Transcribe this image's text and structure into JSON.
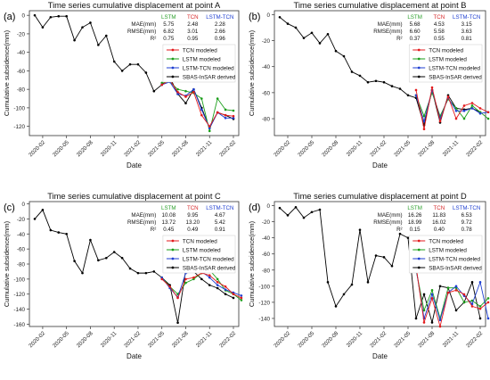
{
  "chart_data": [
    {
      "type": "line",
      "panel_label": "(a)",
      "title": "Time series cumulative displacement at point A",
      "xlabel": "Date",
      "ylabel": "Cumulative subsidence(mm)",
      "ylim": [
        -130,
        5
      ],
      "yticks": [
        -120,
        -100,
        -80,
        -60,
        -40,
        -20,
        0
      ],
      "xticks": [
        "2020-02",
        "2020-05",
        "2020-08",
        "2020-11",
        "2021-02",
        "2021-05",
        "2021-08",
        "2021-11",
        "2022-02"
      ],
      "legend_position": "center-right",
      "metrics_table": {
        "columns": [
          "LSTM",
          "TCN",
          "LSTM-TCN"
        ],
        "column_colors": [
          "#2ca02c",
          "#d62728",
          "#1f3fd1"
        ],
        "rows": [
          {
            "label": "MAE(mm)",
            "values": [
              "5.75",
              "2.48",
              "2.28"
            ]
          },
          {
            "label": "RMSE(mm)",
            "values": [
              "6.82",
              "3.01",
              "2.66"
            ]
          },
          {
            "label": "R²",
            "values": [
              "0.75",
              "0.95",
              "0.96"
            ]
          }
        ]
      },
      "series": [
        {
          "name": "TCN modeled",
          "color": "#e31a1c",
          "start_index": 16,
          "values": [
            -75,
            -70,
            -83,
            -88,
            -83,
            -108,
            -120,
            -105,
            -108,
            -109
          ]
        },
        {
          "name": "LSTM modeled",
          "color": "#1a9e1a",
          "start_index": 16,
          "values": [
            -73,
            -72,
            -80,
            -82,
            -84,
            -90,
            -125,
            -90,
            -102,
            -103
          ]
        },
        {
          "name": "LSTM-TCN modeled",
          "color": "#1f3fd1",
          "start_index": 16,
          "values": [
            -75,
            -72,
            -85,
            -87,
            -80,
            -102,
            -122,
            -105,
            -111,
            -111
          ]
        },
        {
          "name": "SBAS-InSAR derived",
          "color": "#000000",
          "start_index": 0,
          "values": [
            0,
            -13,
            -2,
            -1,
            -1,
            -27,
            -13,
            -8,
            -32,
            -22,
            -50,
            -60,
            -53,
            -53,
            -62,
            -82,
            -75,
            -67,
            -85,
            -95,
            -80,
            -100,
            -122,
            -105,
            -108,
            -112
          ]
        }
      ]
    },
    {
      "type": "line",
      "panel_label": "(b)",
      "title": "Time series cumulative displacement at point B",
      "xlabel": "Date",
      "ylabel": "Cumulative subsidence(mm)",
      "ylim": [
        -93,
        3
      ],
      "yticks": [
        -80,
        -60,
        -40,
        -20,
        0
      ],
      "xticks": [
        "2020-02",
        "2020-05",
        "2020-08",
        "2020-11",
        "2021-02",
        "2021-05",
        "2021-08",
        "2021-11",
        "2022-02"
      ],
      "legend_position": "center-right",
      "metrics_table": {
        "columns": [
          "LSTM",
          "TCN",
          "LSTM-TCN"
        ],
        "column_colors": [
          "#2ca02c",
          "#d62728",
          "#1f3fd1"
        ],
        "rows": [
          {
            "label": "MAE(mm)",
            "values": [
              "5.68",
              "4.53",
              "3.15"
            ]
          },
          {
            "label": "RMSE(mm)",
            "values": [
              "6.60",
              "5.58",
              "3.63"
            ]
          },
          {
            "label": "R²",
            "values": [
              "0.37",
              "0.55",
              "0.81"
            ]
          }
        ]
      },
      "series": [
        {
          "name": "TCN modeled",
          "color": "#e31a1c",
          "start_index": 17,
          "values": [
            -58,
            -88,
            -56,
            -82,
            -63,
            -80,
            -70,
            -68,
            -72,
            -75
          ]
        },
        {
          "name": "LSTM modeled",
          "color": "#1a9e1a",
          "start_index": 17,
          "values": [
            -62,
            -78,
            -60,
            -78,
            -65,
            -72,
            -80,
            -70,
            -75,
            -80
          ]
        },
        {
          "name": "LSTM-TCN modeled",
          "color": "#1f3fd1",
          "start_index": 17,
          "values": [
            -62,
            -82,
            -58,
            -80,
            -64,
            -74,
            -74,
            -72,
            -76,
            -75
          ]
        },
        {
          "name": "SBAS-InSAR derived",
          "color": "#000000",
          "start_index": 0,
          "values": [
            -2,
            -7,
            -10,
            -18,
            -14,
            -22,
            -15,
            -28,
            -32,
            -44,
            -47,
            -52,
            -51,
            -52,
            -55,
            -57,
            -62,
            -64,
            -85,
            -58,
            -83,
            -62,
            -72,
            -73,
            -72,
            -75
          ]
        }
      ]
    },
    {
      "type": "line",
      "panel_label": "(c)",
      "title": "Time series cumulative displacement at point C",
      "xlabel": "Date",
      "ylabel": "Cumulative subsidence(mm)",
      "ylim": [
        -163,
        3
      ],
      "yticks": [
        -160,
        -140,
        -120,
        -100,
        -80,
        -60,
        -40,
        -20,
        0
      ],
      "xticks": [
        "2020-02",
        "2020-05",
        "2020-08",
        "2020-11",
        "2021-02",
        "2021-05",
        "2021-08",
        "2021-11",
        "2022-02"
      ],
      "legend_position": "center-right",
      "metrics_table": {
        "columns": [
          "LSTM",
          "TCN",
          "LSTM-TCN"
        ],
        "column_colors": [
          "#2ca02c",
          "#d62728",
          "#1f3fd1"
        ],
        "rows": [
          {
            "label": "MAE(mm)",
            "values": [
              "10.08",
              "9.95",
              "4.67"
            ]
          },
          {
            "label": "RMSE(mm)",
            "values": [
              "13.72",
              "13.20",
              "5.42"
            ]
          },
          {
            "label": "R²",
            "values": [
              "0.45",
              "0.49",
              "0.91"
            ]
          }
        ]
      },
      "series": [
        {
          "name": "TCN modeled",
          "color": "#e31a1c",
          "start_index": 16,
          "values": [
            -100,
            -110,
            -125,
            -100,
            -98,
            -92,
            -95,
            -104,
            -110,
            -120,
            -125
          ]
        },
        {
          "name": "LSTM modeled",
          "color": "#1a9e1a",
          "start_index": 16,
          "values": [
            -98,
            -110,
            -120,
            -105,
            -100,
            -92,
            -88,
            -100,
            -115,
            -120,
            -128
          ]
        },
        {
          "name": "LSTM-TCN modeled",
          "color": "#1f3fd1",
          "start_index": 16,
          "values": [
            -98,
            -112,
            -124,
            -92,
            -90,
            -90,
            -98,
            -108,
            -114,
            -118,
            -122
          ]
        },
        {
          "name": "SBAS-InSAR derived",
          "color": "#000000",
          "start_index": 0,
          "values": [
            -20,
            -8,
            -35,
            -38,
            -40,
            -76,
            -92,
            -48,
            -75,
            -72,
            -64,
            -72,
            -86,
            -92,
            -92,
            -90,
            -98,
            -108,
            -158,
            -88,
            -90,
            -100,
            -108,
            -112,
            -120,
            -125
          ]
        }
      ]
    },
    {
      "type": "line",
      "panel_label": "(d)",
      "title": "Time series cumulative displacement at point D",
      "xlabel": "Date",
      "ylabel": "Cumulative subsidence(mm)",
      "ylim": [
        -150,
        5
      ],
      "yticks": [
        -140,
        -120,
        -100,
        -80,
        -60,
        -40,
        -20,
        0
      ],
      "xticks": [
        "2020-02",
        "2020-05",
        "2020-08",
        "2020-11",
        "2021-02",
        "2021-05",
        "2021-08",
        "2021-11",
        "2022-02"
      ],
      "legend_position": "center-right",
      "metrics_table": {
        "columns": [
          "LSTM",
          "TCN",
          "LSTM-TCN"
        ],
        "column_colors": [
          "#2ca02c",
          "#d62728",
          "#1f3fd1"
        ],
        "rows": [
          {
            "label": "MAE(mm)",
            "values": [
              "16.26",
              "11.83",
              "6.53"
            ]
          },
          {
            "label": "RMSE(mm)",
            "values": [
              "18.99",
              "16.02",
              "9.72"
            ]
          },
          {
            "label": "R²",
            "values": [
              "0.15",
              "0.40",
              "0.78"
            ]
          }
        ]
      },
      "series": [
        {
          "name": "TCN modeled",
          "color": "#e31a1c",
          "start_index": 17,
          "values": [
            -75,
            -145,
            -115,
            -150,
            -108,
            -105,
            -110,
            -125,
            -128,
            -120
          ]
        },
        {
          "name": "LSTM modeled",
          "color": "#1a9e1a",
          "start_index": 17,
          "values": [
            -80,
            -130,
            -105,
            -140,
            -102,
            -102,
            -120,
            -118,
            -125,
            -115
          ]
        },
        {
          "name": "LSTM-TCN modeled",
          "color": "#1f3fd1",
          "start_index": 17,
          "values": [
            -78,
            -140,
            -110,
            -142,
            -108,
            -100,
            -112,
            -122,
            -95,
            -140
          ]
        },
        {
          "name": "SBAS-InSAR derived",
          "color": "#000000",
          "start_index": 0,
          "values": [
            -3,
            -12,
            -2,
            -15,
            -8,
            -5,
            -95,
            -125,
            -110,
            -98,
            -30,
            -95,
            -62,
            -64,
            -75,
            -35,
            -40,
            -140,
            -110,
            -145,
            -100,
            -102,
            -130,
            -120,
            -95,
            -140
          ]
        }
      ]
    }
  ]
}
